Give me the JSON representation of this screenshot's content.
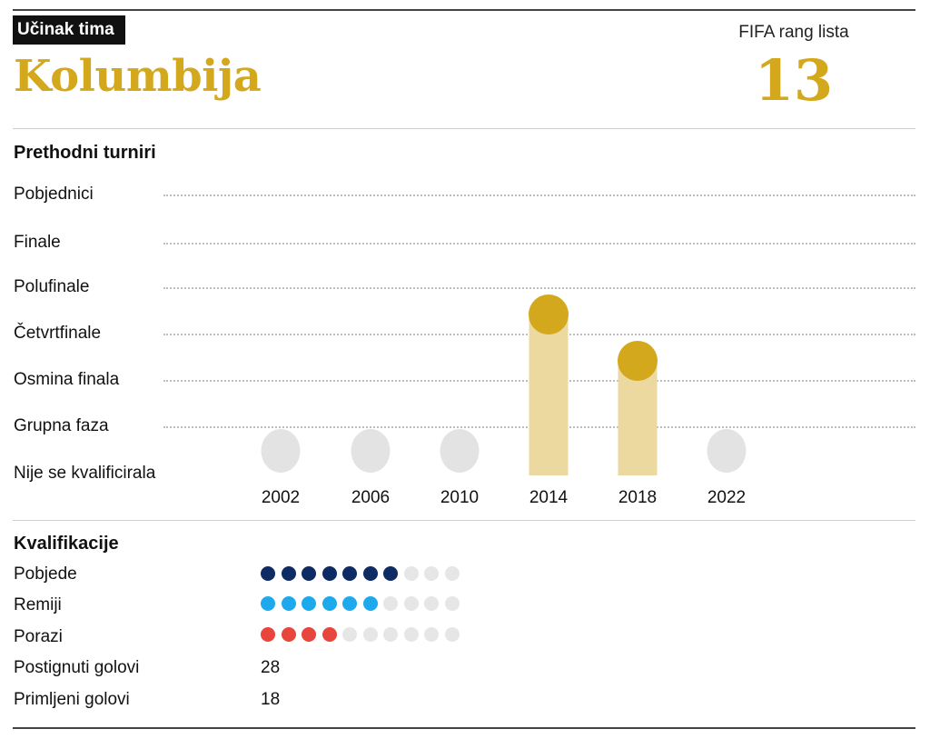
{
  "header": {
    "kicker": "Učinak tima",
    "team": "Kolumbija",
    "rank_label": "FIFA rang lista",
    "rank_value": "13"
  },
  "colors": {
    "gold": "#d4a81c",
    "gold_light": "#ebd9a0",
    "not_qualified": "#e3e3e3",
    "wins": "#0e2b64",
    "draws": "#1ea9ec",
    "losses": "#e8453c",
    "empty_dot": "#e6e6e6"
  },
  "tournaments": {
    "title": "Prethodni turniri"
  },
  "chart_data": {
    "type": "bar",
    "title": "Prethodni turniri",
    "stages": [
      "Pobjednici",
      "Finale",
      "Polufinale",
      "Četvrtfinale",
      "Osmina finala",
      "Grupna faza",
      "Nije se kvalificirala"
    ],
    "categories": [
      "2002",
      "2006",
      "2010",
      "2014",
      "2018",
      "2022"
    ],
    "values": [
      "Nije se kvalificirala",
      "Nije se kvalificirala",
      "Nije se kvalificirala",
      "Četvrtfinale",
      "Osmina finala",
      "Nije se kvalificirala"
    ]
  },
  "qualifiers": {
    "title": "Kvalifikacije",
    "total_slots": 10,
    "rows": [
      {
        "label": "Pobjede",
        "count": 7,
        "color": "#0e2b64"
      },
      {
        "label": "Remiji",
        "count": 6,
        "color": "#1ea9ec"
      },
      {
        "label": "Porazi",
        "count": 4,
        "color": "#e8453c"
      }
    ],
    "goals_scored_label": "Postignuti golovi",
    "goals_scored": "28",
    "goals_conceded_label": "Primljeni golovi",
    "goals_conceded": "18"
  }
}
